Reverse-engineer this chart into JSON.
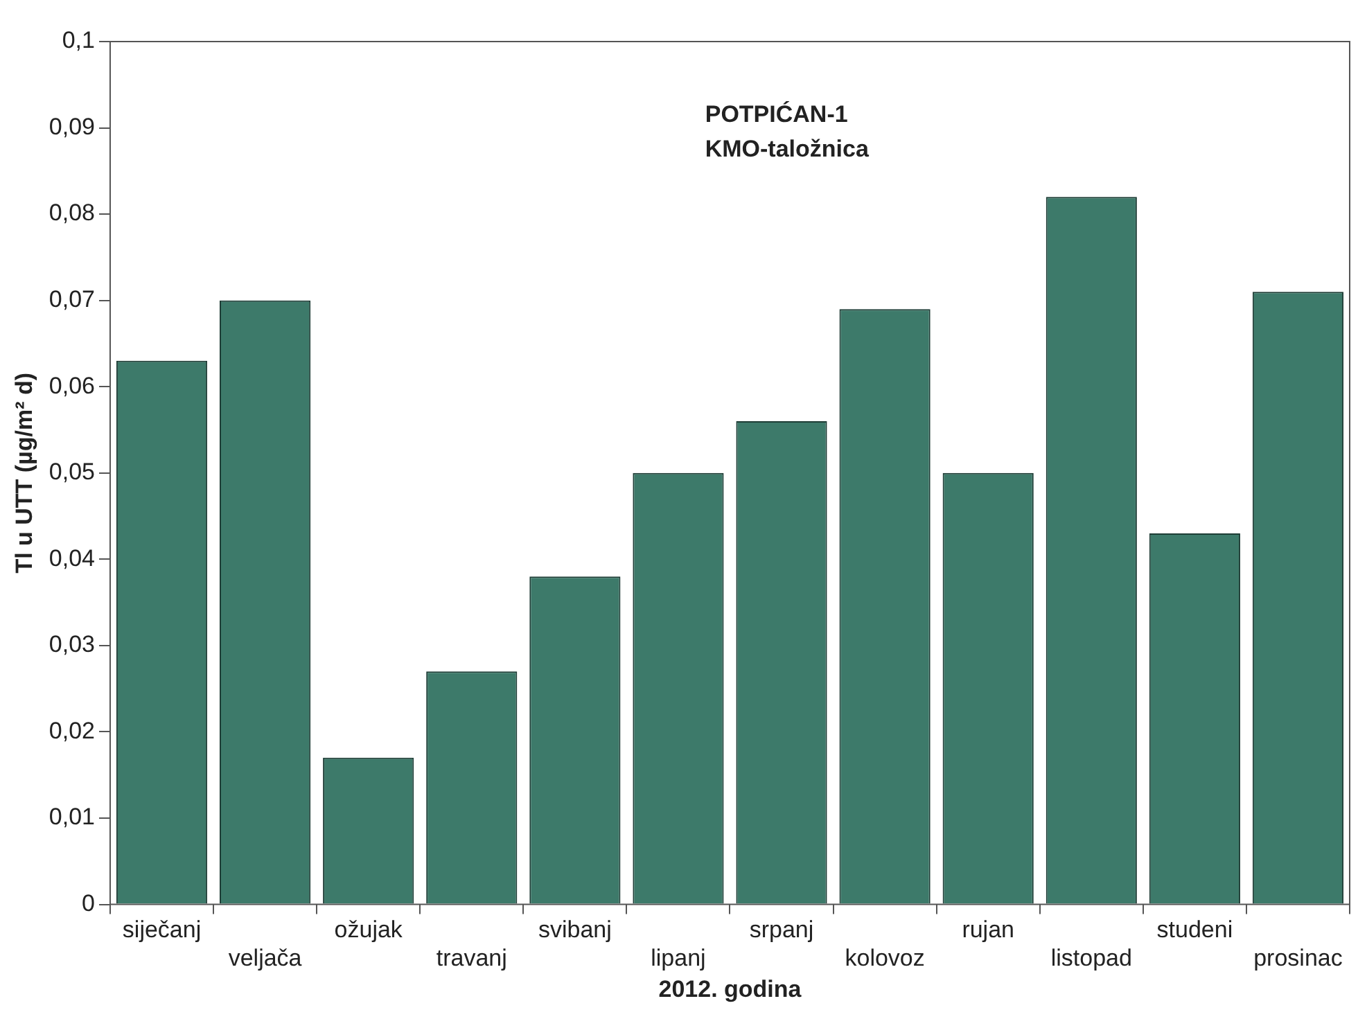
{
  "chart_data": {
    "type": "bar",
    "title": "POTPIĆAN-1",
    "subtitle": "KMO-taložnica",
    "xlabel": "2012. godina",
    "ylabel": "Tl u UTT (µg/m² d)",
    "categories": [
      "siječanj",
      "veljača",
      "ožujak",
      "travanj",
      "svibanj",
      "lipanj",
      "srpanj",
      "kolovoz",
      "rujan",
      "listopad",
      "studeni",
      "prosinac"
    ],
    "values": [
      0.063,
      0.07,
      0.017,
      0.027,
      0.038,
      0.05,
      0.056,
      0.069,
      0.05,
      0.082,
      0.043,
      0.071
    ],
    "color": "#3d7a6a",
    "ylim": [
      0,
      0.1
    ],
    "yticks": [
      0,
      {
        "value": 0.01,
        "label": "0,01"
      },
      {
        "value": 0.02,
        "label": "0,02"
      },
      {
        "value": 0.03,
        "label": "0,03"
      },
      {
        "value": 0.04,
        "label": "0,04"
      },
      {
        "value": 0.05,
        "label": "0,05"
      },
      {
        "value": 0.06,
        "label": "0,06"
      },
      {
        "value": 0.07,
        "label": "0,07"
      },
      {
        "value": 0.08,
        "label": "0,08"
      },
      {
        "value": 0.09,
        "label": "0,09"
      },
      {
        "value": 0.1,
        "label": "0,1"
      }
    ],
    "grid": false,
    "legend": false
  }
}
